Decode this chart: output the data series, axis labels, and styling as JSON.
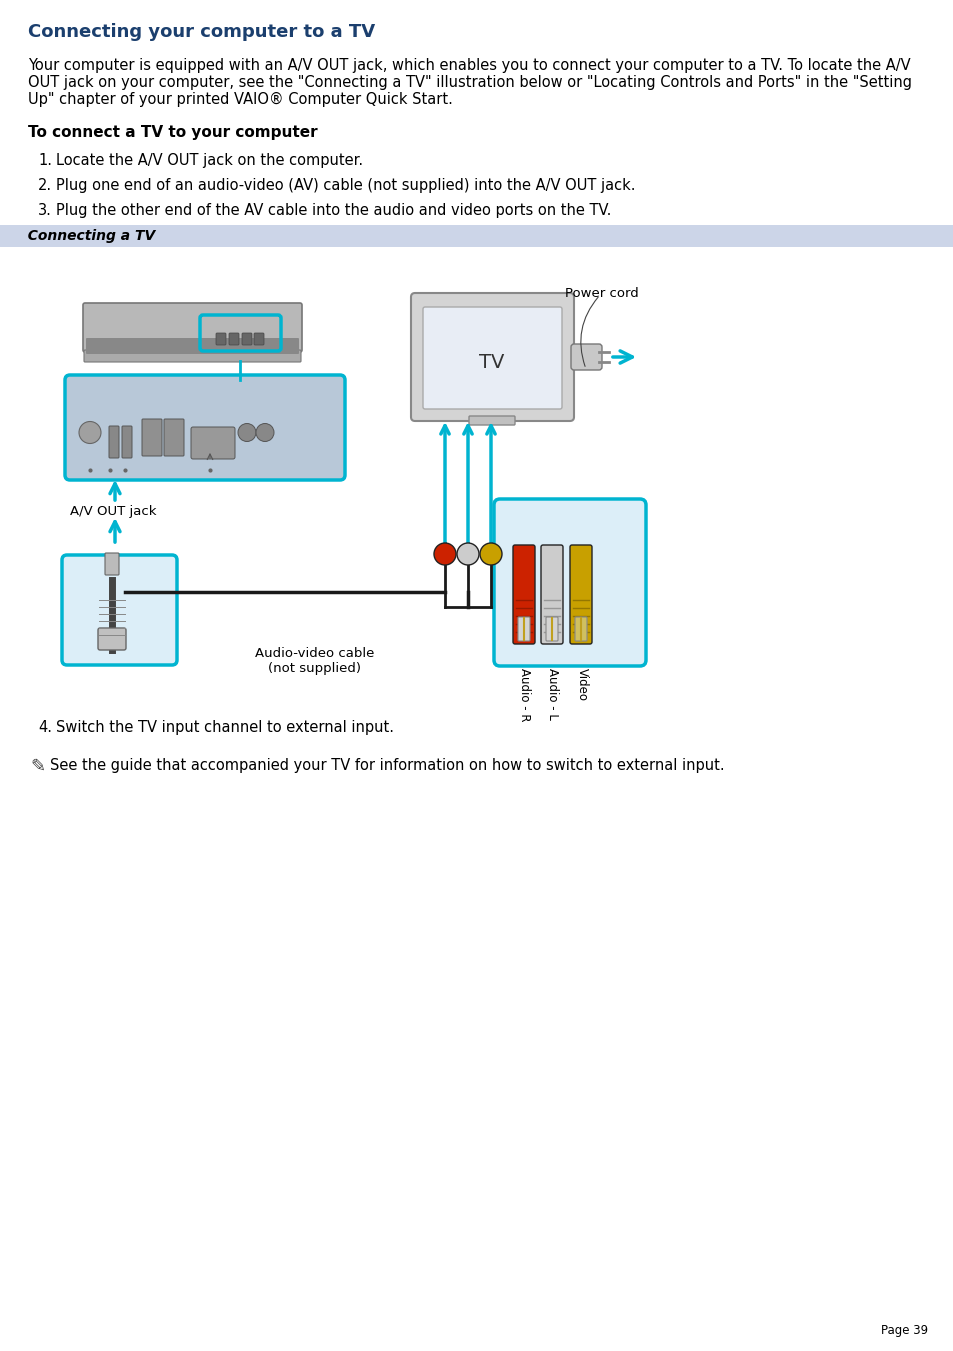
{
  "title": "Connecting your computer to a TV",
  "title_color": "#1b3f6e",
  "bg_color": "#ffffff",
  "section_bg": "#ccd5e8",
  "section_label": "Connecting a TV",
  "para1_line1": "Your computer is equipped with an A/V OUT jack, which enables you to connect your computer to a TV. To locate the A/V",
  "para1_line2": "OUT jack on your computer, see the \"Connecting a TV\" illustration below or \"Locating Controls and Ports\" in the \"Setting",
  "para1_line3": "Up\" chapter of your printed VAIO® Computer Quick Start.",
  "subtitle": "To connect a TV to your computer",
  "step1": "Locate the A/V OUT jack on the computer.",
  "step2": "Plug one end of an audio-video (AV) cable (not supplied) into the A/V OUT jack.",
  "step3": "Plug the other end of the AV cable into the audio and video ports on the TV.",
  "step4": "Switch the TV input channel to external input.",
  "note": "See the guide that accompanied your TV for information on how to switch to external input.",
  "page_number": "Page 39",
  "cyan": "#00b4d0",
  "note_icon": "⚠"
}
